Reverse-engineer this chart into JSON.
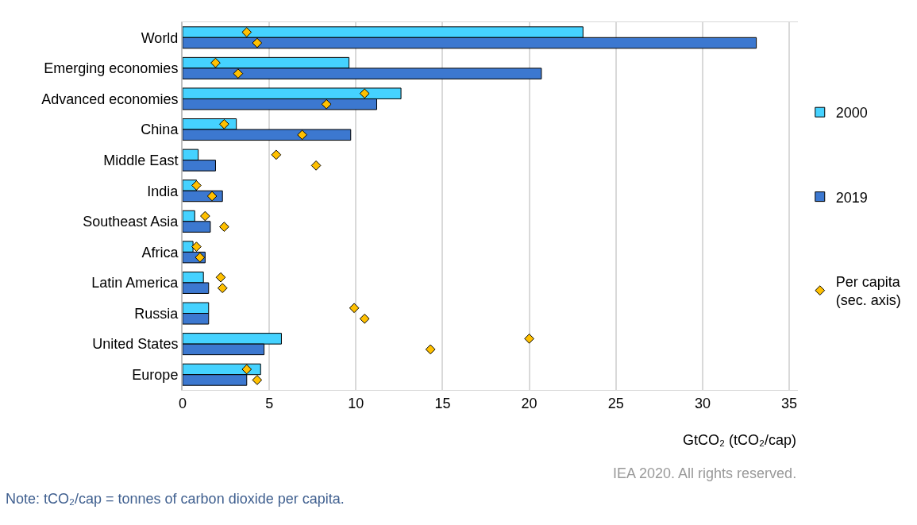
{
  "chart_data": {
    "type": "bar",
    "orientation": "horizontal",
    "categories": [
      "World",
      "Emerging economies",
      "Advanced economies",
      "China",
      "Middle East",
      "India",
      "Southeast Asia",
      "Africa",
      "Latin America",
      "Russia",
      "United States",
      "Europe"
    ],
    "series": [
      {
        "name": "2000",
        "color": "#45d2ff",
        "values": [
          23.1,
          9.6,
          12.6,
          3.1,
          0.9,
          0.8,
          0.7,
          0.6,
          1.2,
          1.5,
          5.7,
          4.5
        ]
      },
      {
        "name": "2019",
        "color": "#3c78d0",
        "values": [
          33.1,
          20.7,
          11.2,
          9.7,
          1.9,
          2.3,
          1.6,
          1.3,
          1.5,
          1.5,
          4.7,
          3.7
        ]
      },
      {
        "name": "Per capita\n(sec. axis)",
        "type": "scatter",
        "color": "#ffc000",
        "values": [
          3.7,
          1.9,
          10.5,
          2.4,
          5.4,
          0.8,
          1.3,
          0.8,
          2.2,
          9.9,
          20.0,
          3.7
        ]
      },
      {
        "type": "scatter",
        "color": "#ffc000",
        "values": [
          4.3,
          3.2,
          8.3,
          6.9,
          7.7,
          1.7,
          2.4,
          1.0,
          2.3,
          10.5,
          14.3,
          4.3
        ]
      }
    ],
    "xlabel": "GtCO₂ (tCO₂/cap)",
    "xlim": [
      0,
      35.5
    ],
    "xticks": [
      0,
      5,
      10,
      15,
      20,
      25,
      30,
      35
    ],
    "grid": "x",
    "legend": "right",
    "marker": "diamond",
    "annotations": [
      "IEA 2020. All rights reserved.",
      "Note: tCO₂/cap = tonnes of carbon dioxide per capita."
    ]
  }
}
